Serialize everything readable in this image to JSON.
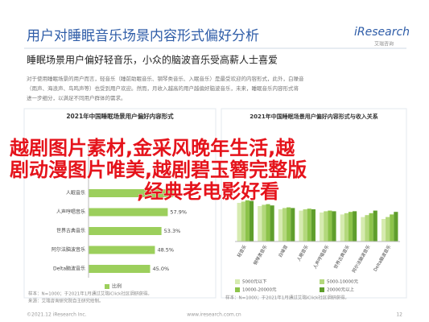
{
  "header": {
    "title": "用户对睡眠音乐场景内容形式偏好分析",
    "logo": "iResearch",
    "logo_sub": "艾瑞咨询"
  },
  "subtitle": "睡眠场景用户偏好轻音乐，小众的脑波音乐受高薪人士喜爱",
  "paragraph": [
    "对于使用睡眠场景的用户而言，轻音乐（睡前助眠音乐、钢琴类音乐、入眠音乐）是最受欢迎的内容形式，此外，白噪音",
    "（雨声、海浪声、鸟鸣声等）也受到用户欢迎。然而，月收入越高的用户越偏好脑波音乐，未来，睡眠音乐内容形式将",
    "进一步细分，以满足不同用户群体的需求。"
  ],
  "left_chart": {
    "type": "bar",
    "title": "2021年中国睡眠场景用户偏好内容形式",
    "categories": [
      "人眠音乐",
      "人声哼唱音乐",
      "世界古典音乐",
      "阿尔法脑波音乐",
      "Delta脑波音乐"
    ],
    "values": [
      62,
      57.9,
      53.3,
      48.5,
      45.0
    ],
    "value_labels": [
      null,
      "57.9%",
      "53.3%",
      "48.5%",
      "45.0%"
    ],
    "xlim": [
      0,
      100
    ],
    "color": "#9ccf5c",
    "legend": "比例",
    "note": "样本：N=1000；于2021年1月通过艾瑞iClick社区调研获得。"
  },
  "right_chart": {
    "type": "grouped-bar",
    "title": "2021年中国睡眠场景用户偏好内容形式与收入关系",
    "categories": [
      "轻音乐",
      "钢琴类音乐",
      "白噪音",
      "人眠音乐",
      "人声哼唱音乐",
      "世界古典音乐",
      "阿尔法脑波音乐",
      "Delta脑波音乐"
    ],
    "ylim": [
      0,
      100
    ],
    "series": [
      {
        "name": "5000元以下",
        "color": "#d6ebb0",
        "values": [
          60,
          55,
          50,
          48,
          45,
          42,
          38,
          35
        ]
      },
      {
        "name": "5000-10000元",
        "color": "#b3d87c",
        "values": [
          62,
          57,
          52,
          50,
          47,
          44,
          41,
          38
        ]
      },
      {
        "name": "10000-20000元",
        "color": "#8cc34a",
        "values": [
          64,
          58,
          53,
          51,
          48,
          46,
          44,
          42
        ]
      },
      {
        "name": "20000元以上",
        "color": "#5f9e2c",
        "values": [
          63,
          56,
          52,
          50,
          47,
          47,
          48,
          46
        ]
      }
    ],
    "note": "样本：N=1000；于2021年1月通过艾瑞iClick社区调研获得。"
  },
  "source": "来源：艾瑞咨询研究院自主研究绘制。",
  "footer": {
    "left": "©2021.12 iResearch Inc.",
    "center": "www.iresearch.com.cn",
    "page": "12"
  },
  "overlay": {
    "lines": [
      "越剧图片素材,金采风晚年生活,越",
      "剧动漫图片唯美,越剧碧玉簪完整版",
      ",经典老电影好看"
    ]
  }
}
